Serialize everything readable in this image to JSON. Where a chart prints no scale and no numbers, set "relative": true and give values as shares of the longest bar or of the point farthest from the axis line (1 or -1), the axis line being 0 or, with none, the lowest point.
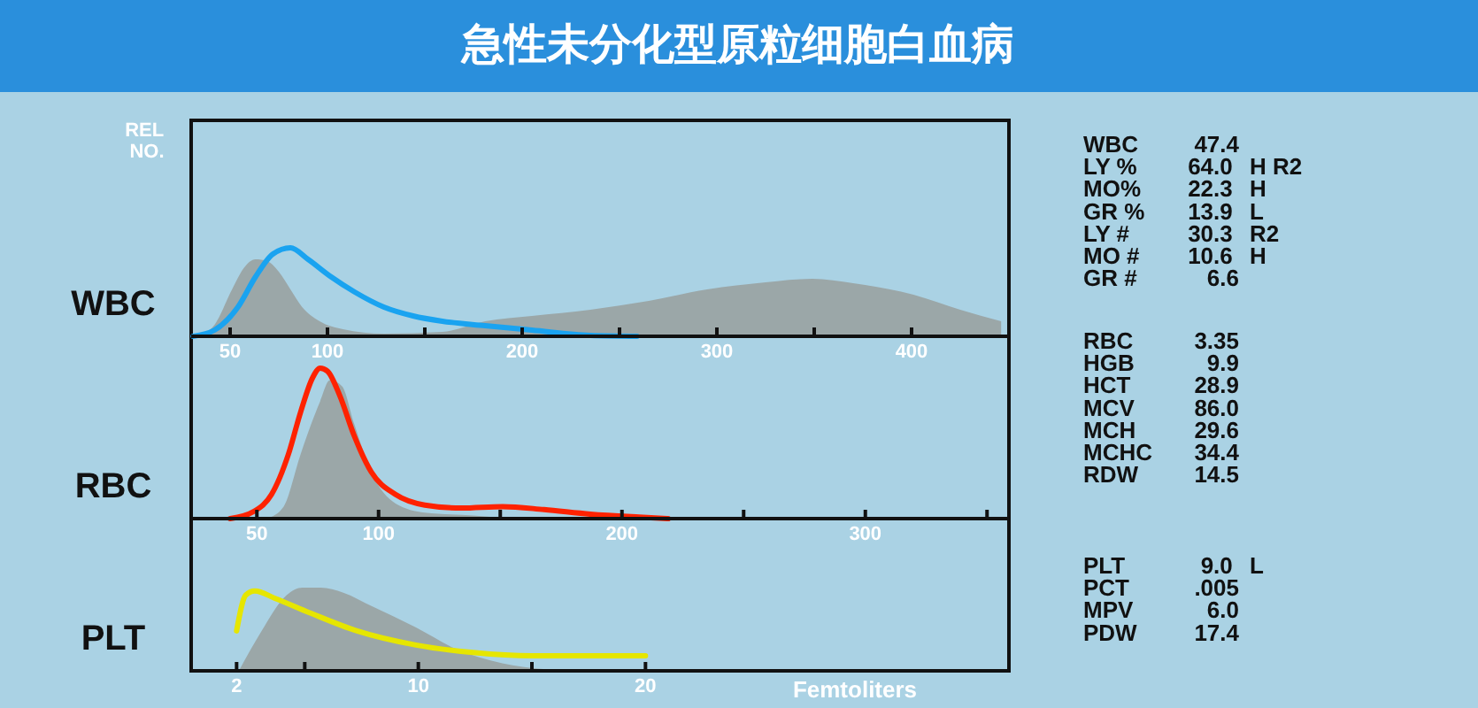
{
  "chart_data": [
    {
      "type": "area",
      "title": "急性未分化型原粒细胞白血病",
      "ylabel": "WBC",
      "annotations": [
        "REL NO."
      ],
      "relative": true,
      "xlim": [
        30,
        450
      ],
      "xticks": [
        50,
        100,
        {
          "value": 150,
          "label": null
        },
        200,
        {
          "value": 250,
          "label": null
        },
        300,
        {
          "value": 350,
          "label": null
        },
        400
      ],
      "series": [
        {
          "type": "area",
          "color": "#9ba7a8",
          "x": [
            33,
            42,
            51,
            57,
            63,
            69,
            75,
            81,
            87,
            96,
            108,
            129,
            159,
            181,
            205,
            235,
            265,
            295,
            325,
            349,
            370,
            401,
            425,
            446
          ],
          "values": [
            0,
            0.13,
            0.53,
            0.77,
            0.87,
            0.85,
            0.73,
            0.53,
            0.33,
            0.17,
            0.08,
            0.03,
            0.05,
            0.17,
            0.23,
            0.3,
            0.4,
            0.53,
            0.61,
            0.65,
            0.6,
            0.47,
            0.3,
            0.17
          ]
        },
        {
          "type": "line",
          "color": "#1aa3f0",
          "x": [
            31,
            42,
            54,
            63,
            72,
            81,
            90,
            102,
            114,
            129,
            144,
            159,
            181,
            205,
            235,
            259
          ],
          "values": [
            0,
            0.07,
            0.33,
            0.67,
            0.93,
            1,
            0.87,
            0.67,
            0.5,
            0.33,
            0.23,
            0.17,
            0.12,
            0.07,
            0.01,
            0
          ]
        }
      ]
    },
    {
      "type": "other",
      "annotations": [
        "WBC  47.4",
        "LY %  64.0  H R2",
        "MO%  22.3  H",
        "GR %  13.9  L",
        "LY #  30.3  R2",
        "MO #  10.6  H",
        "GR #  6.6"
      ]
    },
    {
      "type": "area",
      "ylabel": "RBC",
      "relative": true,
      "xlim": [
        23,
        359
      ],
      "xticks": [
        50,
        100,
        {
          "value": 150,
          "label": null
        },
        200,
        {
          "value": 250,
          "label": null
        },
        300,
        {
          "value": 350,
          "label": null
        }
      ],
      "series": [
        {
          "type": "area",
          "color": "#9ba7a8",
          "x": [
            54,
            61,
            68,
            76,
            80,
            85,
            90,
            97,
            107,
            119,
            139,
            153
          ],
          "values": [
            0,
            0.08,
            0.43,
            0.78,
            0.92,
            0.88,
            0.63,
            0.31,
            0.1,
            0.04,
            0.02,
            0
          ]
        },
        {
          "type": "line",
          "color": "#ff2200",
          "x": [
            39,
            49,
            56,
            63,
            68,
            73,
            76,
            79,
            84,
            90,
            97,
            107,
            119,
            134,
            151,
            168,
            187,
            207,
            219
          ],
          "values": [
            0,
            0.05,
            0.16,
            0.43,
            0.71,
            0.94,
            1,
            0.98,
            0.82,
            0.55,
            0.31,
            0.16,
            0.09,
            0.07,
            0.08,
            0.06,
            0.03,
            0.01,
            0
          ]
        }
      ]
    },
    {
      "type": "other",
      "annotations": [
        "RBC  3.35",
        "HGB  9.9",
        "HCT  28.9",
        "MCV  86.0",
        "MCH  29.6",
        "MCHC  34.4",
        "RDW  14.5"
      ]
    },
    {
      "type": "area",
      "ylabel": "PLT",
      "xlabel": "Femtoliters",
      "relative": true,
      "xlim": [
        0,
        36
      ],
      "xticks": [
        2,
        {
          "value": 5,
          "label": null
        },
        10,
        {
          "value": 15,
          "label": null
        },
        20
      ],
      "series": [
        {
          "type": "area",
          "color": "#9ba7a8",
          "x": [
            2.1,
            3.1,
            4.2,
            4.9,
            5.7,
            6.7,
            8,
            9.9,
            11.6,
            13.7,
            15.5,
            17
          ],
          "values": [
            0,
            0.48,
            0.91,
            1,
            1,
            0.94,
            0.77,
            0.52,
            0.27,
            0.09,
            0.02,
            0
          ]
        },
        {
          "type": "line",
          "color": "#e6e600",
          "x": [
            2,
            2.4,
            2.8,
            3.7,
            5.2,
            7.3,
            9.9,
            12.4,
            15,
            17.6,
            20
          ],
          "values": [
            0.48,
            0.91,
            0.96,
            0.87,
            0.7,
            0.48,
            0.31,
            0.22,
            0.18,
            0.18,
            0.18
          ]
        }
      ]
    },
    {
      "type": "other",
      "annotations": [
        "PLT  9.0  L",
        "PCT  .005",
        "MPV  6.0",
        "PDW  17.4"
      ]
    }
  ]
}
